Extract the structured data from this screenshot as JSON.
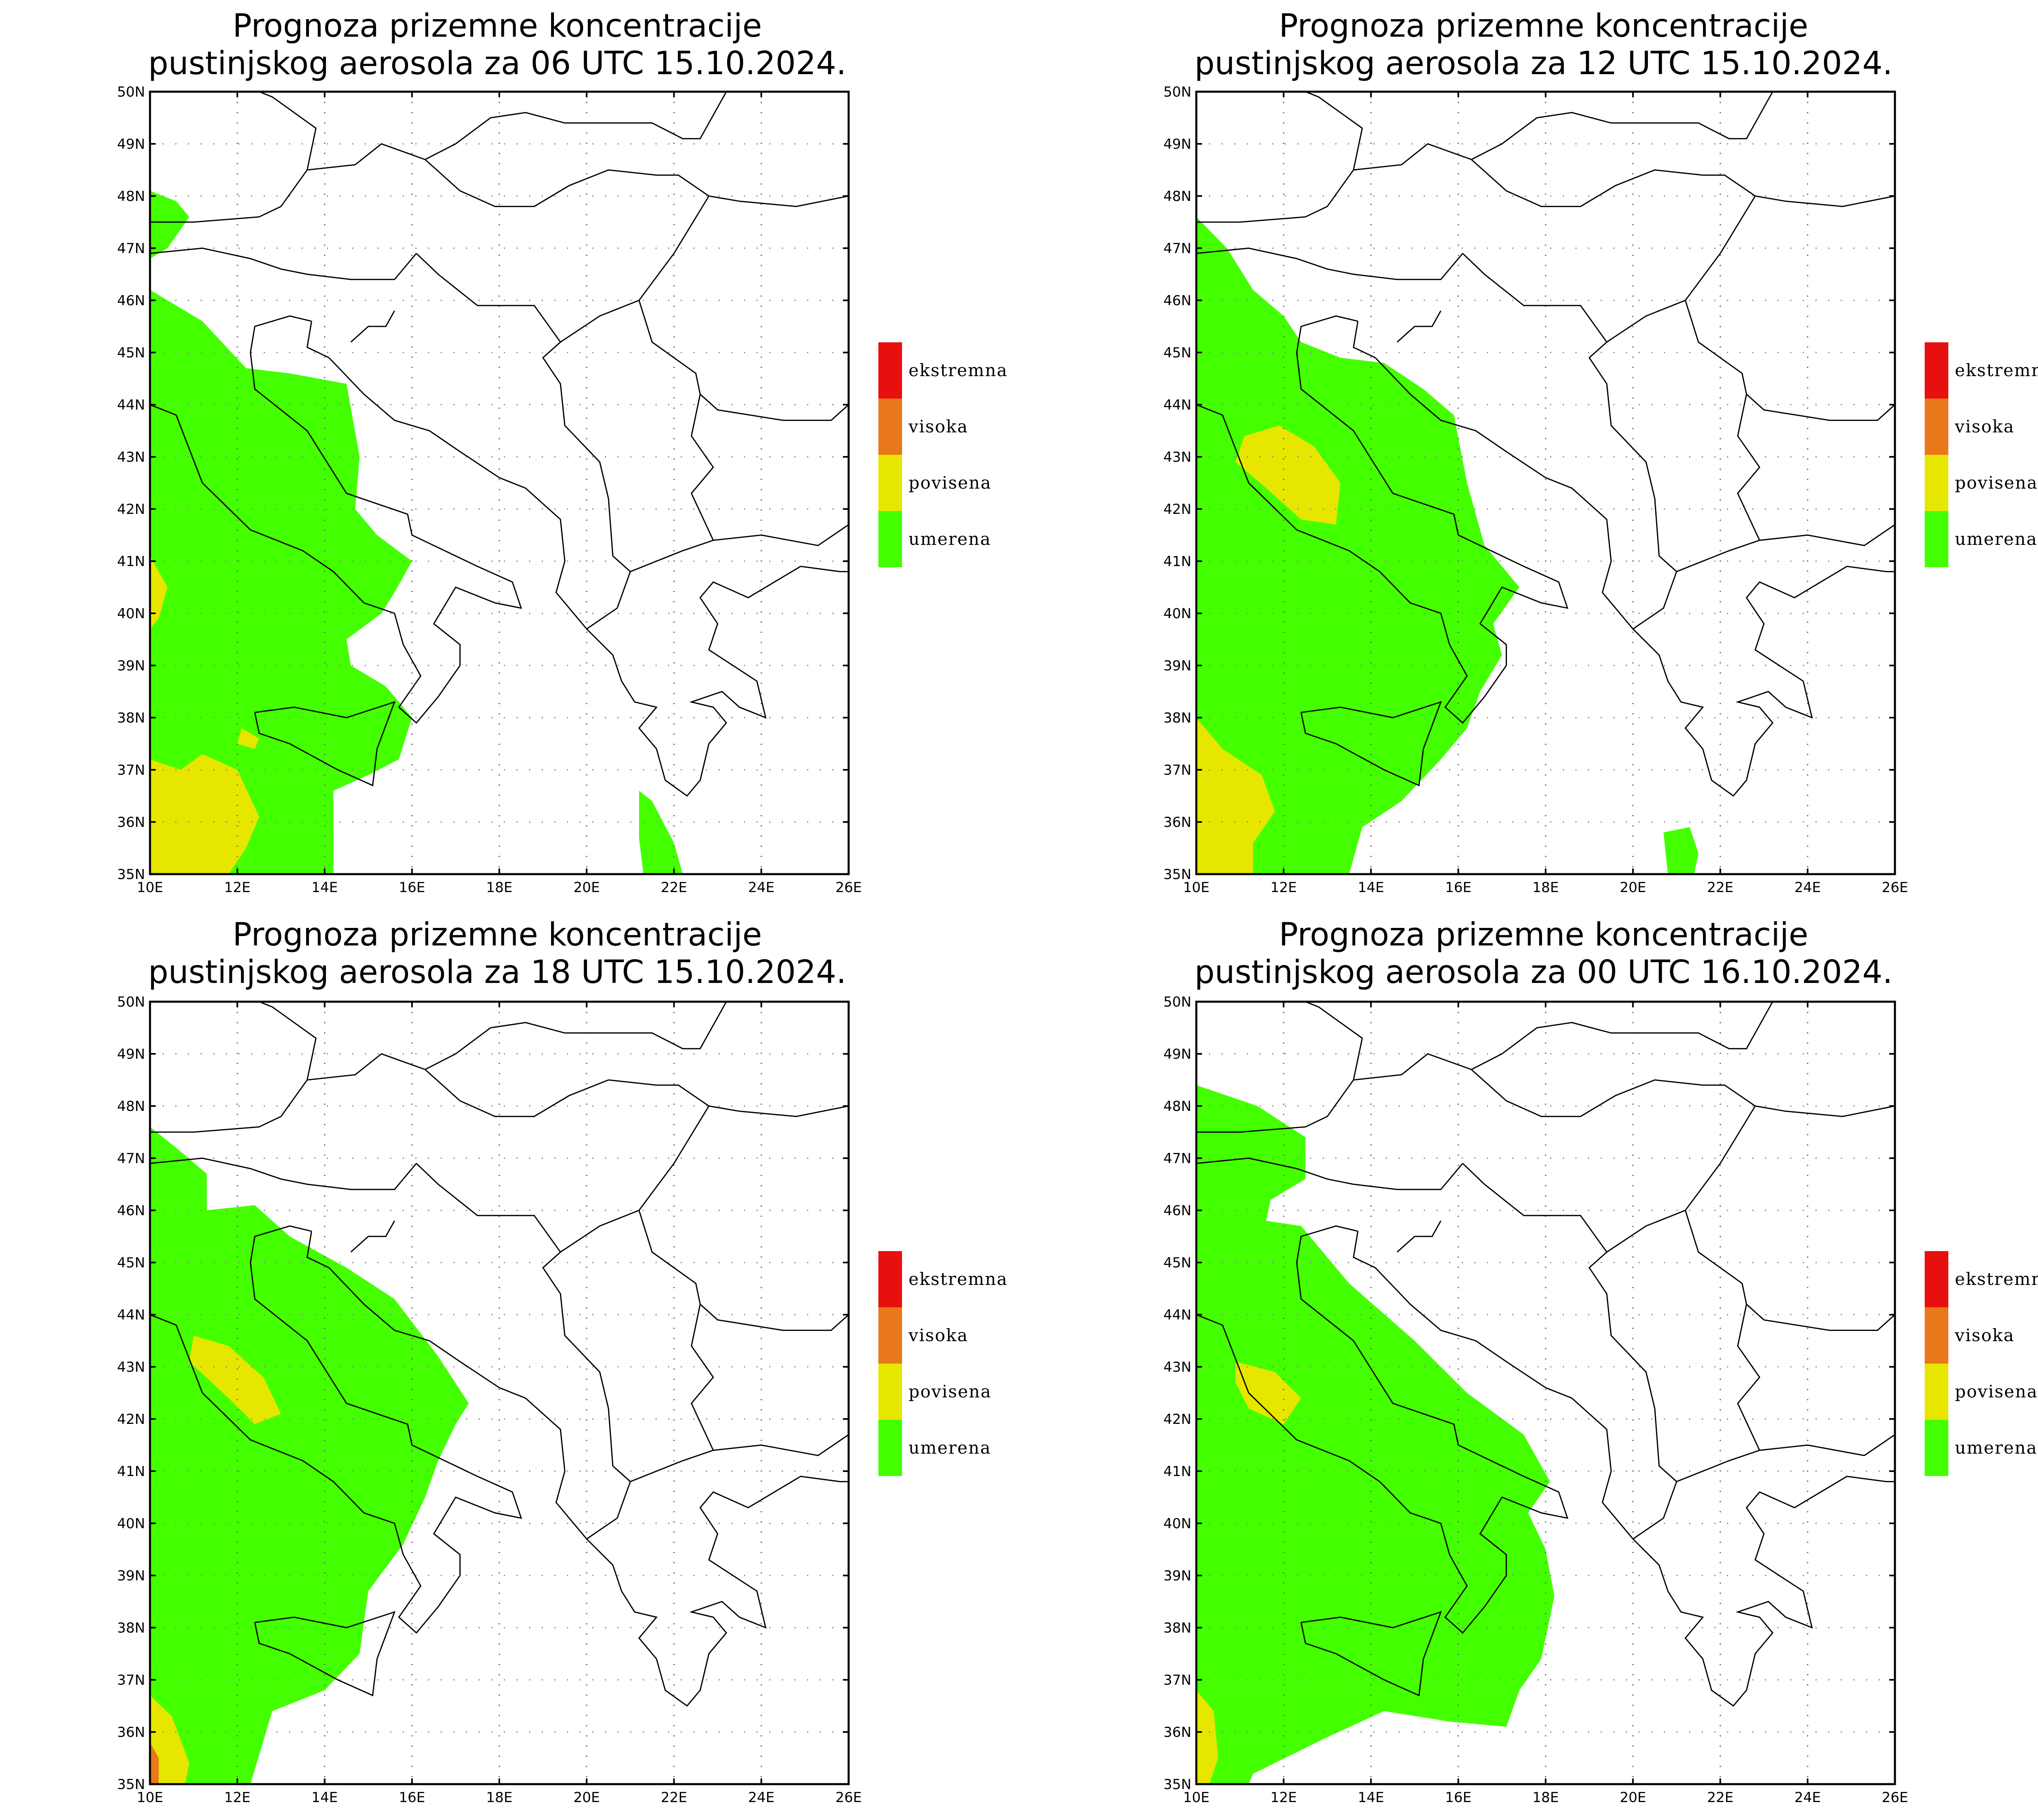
{
  "legend": {
    "items": [
      {
        "label": "ekstremna",
        "color": "#e8100e"
      },
      {
        "label": "visoka",
        "color": "#e8781a"
      },
      {
        "label": "povisena",
        "color": "#e6e600"
      },
      {
        "label": "umerena",
        "color": "#44ff00"
      }
    ]
  },
  "axes": {
    "lon_ticks": [
      "10E",
      "12E",
      "14E",
      "16E",
      "18E",
      "20E",
      "22E",
      "24E",
      "26E"
    ],
    "lat_ticks": [
      "35N",
      "36N",
      "37N",
      "38N",
      "39N",
      "40N",
      "41N",
      "42N",
      "43N",
      "44N",
      "45N",
      "46N",
      "47N",
      "48N",
      "49N",
      "50N"
    ],
    "lon_range": [
      10,
      26
    ],
    "lat_range": [
      35,
      50
    ],
    "grid": "dotted"
  },
  "panels": [
    {
      "title_line1": "Prognoza prizemne koncentracije",
      "title_line2": "pustinjskog aerosola za 06 UTC 15.10.2024.",
      "zones": [
        {
          "level": "umerena",
          "points": [
            [
              10,
              48.1
            ],
            [
              10.6,
              47.9
            ],
            [
              10.9,
              47.6
            ],
            [
              10.4,
              47.0
            ],
            [
              10,
              46.8
            ]
          ]
        },
        {
          "level": "umerena",
          "points": [
            [
              10,
              46.2
            ],
            [
              11.2,
              45.6
            ],
            [
              12.2,
              44.7
            ],
            [
              13.2,
              44.6
            ],
            [
              14.5,
              44.4
            ],
            [
              14.8,
              43.0
            ],
            [
              14.7,
              42.0
            ],
            [
              15.2,
              41.5
            ],
            [
              16.0,
              41.0
            ],
            [
              15.6,
              40.4
            ],
            [
              15.3,
              40.0
            ],
            [
              14.5,
              39.5
            ],
            [
              14.6,
              39.0
            ],
            [
              15.4,
              38.6
            ],
            [
              16.0,
              38.0
            ],
            [
              15.7,
              37.2
            ],
            [
              15.0,
              36.9
            ],
            [
              14.2,
              36.6
            ],
            [
              14.2,
              35.0
            ],
            [
              10,
              35.0
            ]
          ]
        },
        {
          "level": "povisena",
          "points": [
            [
              10,
              41.1
            ],
            [
              10.4,
              40.5
            ],
            [
              10.2,
              39.9
            ],
            [
              10,
              39.7
            ]
          ]
        },
        {
          "level": "povisena",
          "points": [
            [
              10,
              37.2
            ],
            [
              10.7,
              37.0
            ],
            [
              11.2,
              37.3
            ],
            [
              12.0,
              37.0
            ],
            [
              12.5,
              36.1
            ],
            [
              12.2,
              35.5
            ],
            [
              11.8,
              35.0
            ],
            [
              10,
              35.0
            ]
          ]
        },
        {
          "level": "povisena",
          "points": [
            [
              12.1,
              37.8
            ],
            [
              12.5,
              37.6
            ],
            [
              12.4,
              37.4
            ],
            [
              12.0,
              37.5
            ]
          ]
        },
        {
          "level": "umerena",
          "points": [
            [
              21.2,
              36.6
            ],
            [
              21.5,
              36.4
            ],
            [
              22.0,
              35.6
            ],
            [
              22.2,
              35.0
            ],
            [
              21.3,
              35.0
            ],
            [
              21.2,
              35.7
            ]
          ]
        }
      ]
    },
    {
      "title_line1": "Prognoza prizemne koncentracije",
      "title_line2": "pustinjskog aerosola za 12 UTC 15.10.2024.",
      "zones": [
        {
          "level": "umerena",
          "points": [
            [
              10,
              47.6
            ],
            [
              10.7,
              47.0
            ],
            [
              11.3,
              46.2
            ],
            [
              12.0,
              45.7
            ],
            [
              12.4,
              45.2
            ],
            [
              13.3,
              44.9
            ],
            [
              14.3,
              44.8
            ],
            [
              15.2,
              44.3
            ],
            [
              15.9,
              43.8
            ],
            [
              16.2,
              42.5
            ],
            [
              16.6,
              41.3
            ],
            [
              17.4,
              40.5
            ],
            [
              16.8,
              39.8
            ],
            [
              17.0,
              39.2
            ],
            [
              16.5,
              38.5
            ],
            [
              16.2,
              37.8
            ],
            [
              15.6,
              37.2
            ],
            [
              14.7,
              36.4
            ],
            [
              13.8,
              35.9
            ],
            [
              13.5,
              35.0
            ],
            [
              10,
              35.0
            ]
          ]
        },
        {
          "level": "povisena",
          "points": [
            [
              11.1,
              43.4
            ],
            [
              11.9,
              43.6
            ],
            [
              12.7,
              43.2
            ],
            [
              13.3,
              42.5
            ],
            [
              13.2,
              41.7
            ],
            [
              12.4,
              41.8
            ],
            [
              11.6,
              42.4
            ],
            [
              10.9,
              42.9
            ]
          ]
        },
        {
          "level": "povisena",
          "points": [
            [
              10,
              38.0
            ],
            [
              10.6,
              37.4
            ],
            [
              11.5,
              36.9
            ],
            [
              11.8,
              36.2
            ],
            [
              11.3,
              35.6
            ],
            [
              11.3,
              35.0
            ],
            [
              10,
              35.0
            ]
          ]
        },
        {
          "level": "umerena",
          "points": [
            [
              20.7,
              35.8
            ],
            [
              21.3,
              35.9
            ],
            [
              21.5,
              35.4
            ],
            [
              21.4,
              35.0
            ],
            [
              20.8,
              35.0
            ]
          ]
        }
      ]
    },
    {
      "title_line1": "Prognoza prizemne koncentracije",
      "title_line2": "pustinjskog aerosola za 18 UTC 15.10.2024.",
      "zones": [
        {
          "level": "umerena",
          "points": [
            [
              10,
              47.6
            ],
            [
              10.6,
              47.2
            ],
            [
              11.3,
              46.7
            ],
            [
              11.3,
              46.0
            ],
            [
              12.4,
              46.1
            ],
            [
              13.2,
              45.5
            ],
            [
              14.5,
              44.9
            ],
            [
              15.6,
              44.3
            ],
            [
              16.6,
              43.2
            ],
            [
              17.3,
              42.3
            ],
            [
              17.0,
              41.9
            ],
            [
              16.6,
              41.2
            ],
            [
              16.3,
              40.5
            ],
            [
              15.8,
              39.6
            ],
            [
              15.0,
              38.7
            ],
            [
              14.8,
              37.5
            ],
            [
              14.0,
              36.8
            ],
            [
              12.8,
              36.4
            ],
            [
              12.3,
              35.0
            ],
            [
              10,
              35.0
            ]
          ]
        },
        {
          "level": "povisena",
          "points": [
            [
              11.0,
              43.6
            ],
            [
              11.8,
              43.4
            ],
            [
              12.6,
              42.8
            ],
            [
              13.0,
              42.1
            ],
            [
              12.4,
              41.9
            ],
            [
              11.8,
              42.4
            ],
            [
              10.9,
              43.1
            ]
          ]
        },
        {
          "level": "povisena",
          "points": [
            [
              10,
              36.7
            ],
            [
              10.5,
              36.3
            ],
            [
              10.9,
              35.4
            ],
            [
              10.8,
              35.0
            ],
            [
              10,
              35.0
            ]
          ]
        },
        {
          "level": "visoka",
          "points": [
            [
              10,
              35.8
            ],
            [
              10.2,
              35.5
            ],
            [
              10.2,
              35.0
            ],
            [
              10,
              35.0
            ]
          ]
        }
      ]
    },
    {
      "title_line1": "Prognoza prizemne koncentracije",
      "title_line2": "pustinjskog aerosola za 00 UTC 16.10.2024.",
      "zones": [
        {
          "level": "umerena",
          "points": [
            [
              10,
              48.4
            ],
            [
              11.4,
              48.0
            ],
            [
              12.5,
              47.4
            ],
            [
              12.5,
              46.6
            ],
            [
              11.7,
              46.2
            ],
            [
              11.6,
              45.8
            ],
            [
              12.4,
              45.7
            ],
            [
              13.5,
              44.6
            ],
            [
              15.0,
              43.5
            ],
            [
              16.2,
              42.5
            ],
            [
              17.5,
              41.7
            ],
            [
              18.1,
              40.8
            ],
            [
              17.6,
              40.2
            ],
            [
              18.0,
              39.5
            ],
            [
              18.2,
              38.6
            ],
            [
              17.9,
              37.4
            ],
            [
              17.4,
              36.8
            ],
            [
              17.1,
              36.1
            ],
            [
              15.8,
              36.2
            ],
            [
              14.3,
              36.4
            ],
            [
              13.0,
              35.9
            ],
            [
              11.3,
              35.2
            ],
            [
              11.2,
              35.0
            ],
            [
              10,
              35.0
            ]
          ]
        },
        {
          "level": "povisena",
          "points": [
            [
              10.9,
              43.1
            ],
            [
              11.8,
              42.9
            ],
            [
              12.4,
              42.4
            ],
            [
              12.0,
              41.9
            ],
            [
              11.2,
              42.2
            ],
            [
              10.9,
              42.7
            ]
          ]
        },
        {
          "level": "povisena",
          "points": [
            [
              10,
              36.8
            ],
            [
              10.4,
              36.4
            ],
            [
              10.5,
              35.5
            ],
            [
              10.3,
              35.0
            ],
            [
              10,
              35.0
            ]
          ]
        }
      ]
    }
  ]
}
